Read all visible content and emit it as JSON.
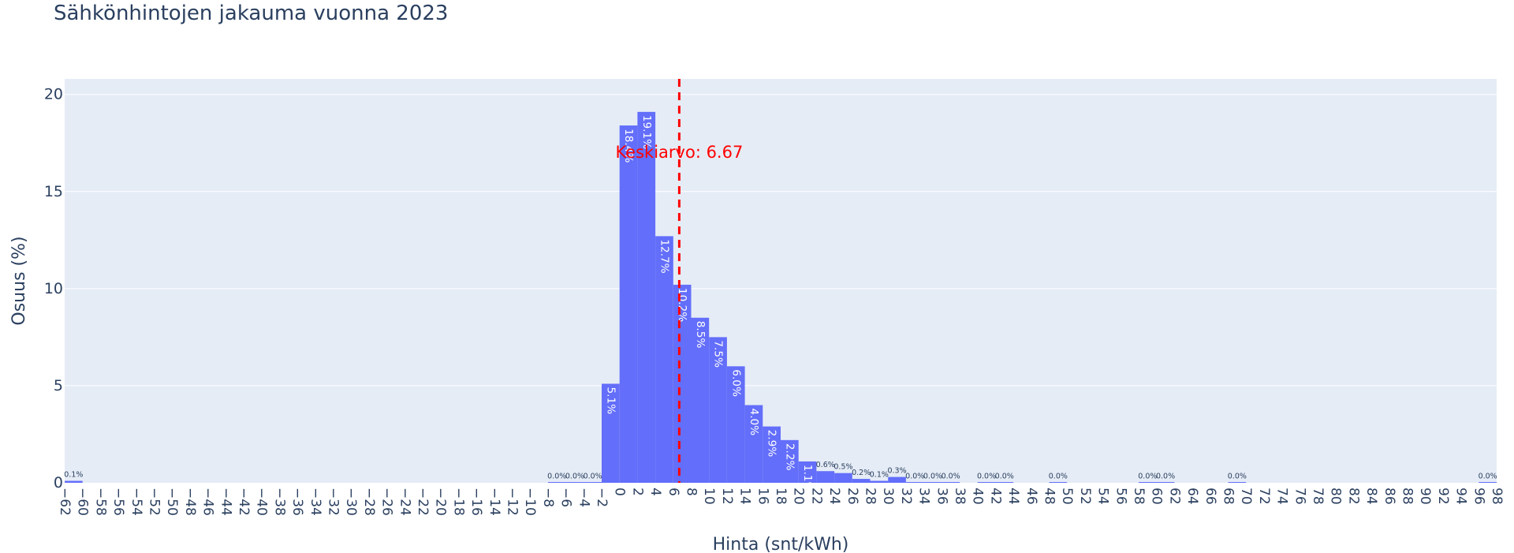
{
  "chart_data": {
    "type": "bar",
    "title": "Sähkönhintojen jakauma vuonna 2023",
    "xlabel": "Hinta (snt/kWh)",
    "ylabel": "Osuus (%)",
    "xlim": [
      -62,
      98
    ],
    "ylim": [
      0,
      20.8
    ],
    "bin_width": 2,
    "x_ticks": [
      -62,
      -60,
      -58,
      -56,
      -54,
      -52,
      -50,
      -48,
      -46,
      -44,
      -42,
      -40,
      -38,
      -36,
      -34,
      -32,
      -30,
      -28,
      -26,
      -24,
      -22,
      -20,
      -18,
      -16,
      -14,
      -12,
      -10,
      -8,
      -6,
      -4,
      -2,
      0,
      2,
      4,
      6,
      8,
      10,
      12,
      14,
      16,
      18,
      20,
      22,
      24,
      26,
      28,
      30,
      32,
      34,
      36,
      38,
      40,
      42,
      44,
      46,
      48,
      50,
      52,
      54,
      56,
      58,
      60,
      62,
      64,
      66,
      68,
      70,
      72,
      74,
      76,
      78,
      80,
      82,
      84,
      86,
      88,
      90,
      92,
      94,
      96,
      98
    ],
    "y_ticks": [
      0,
      5,
      10,
      15,
      20
    ],
    "grid": true,
    "bars": [
      {
        "x0": -62,
        "value": 0.1,
        "label": "0.1%"
      },
      {
        "x0": -8,
        "value": 0.02,
        "label": "0.0%"
      },
      {
        "x0": -6,
        "value": 0.02,
        "label": "0.0%"
      },
      {
        "x0": -4,
        "value": 0.02,
        "label": "0.0%"
      },
      {
        "x0": -2,
        "value": 5.1,
        "label": "5.1%"
      },
      {
        "x0": 0,
        "value": 18.4,
        "label": "18.4%"
      },
      {
        "x0": 2,
        "value": 19.1,
        "label": "19.1%"
      },
      {
        "x0": 4,
        "value": 12.7,
        "label": "12.7%"
      },
      {
        "x0": 6,
        "value": 10.2,
        "label": "10.2%"
      },
      {
        "x0": 8,
        "value": 8.5,
        "label": "8.5%"
      },
      {
        "x0": 10,
        "value": 7.5,
        "label": "7.5%"
      },
      {
        "x0": 12,
        "value": 6.0,
        "label": "6.0%"
      },
      {
        "x0": 14,
        "value": 4.0,
        "label": "4.0%"
      },
      {
        "x0": 16,
        "value": 2.9,
        "label": "2.9%"
      },
      {
        "x0": 18,
        "value": 2.2,
        "label": "2.2%"
      },
      {
        "x0": 20,
        "value": 1.1,
        "label": "1.1%"
      },
      {
        "x0": 22,
        "value": 0.6,
        "label": "0.6%"
      },
      {
        "x0": 24,
        "value": 0.5,
        "label": "0.5%"
      },
      {
        "x0": 26,
        "value": 0.2,
        "label": "0.2%"
      },
      {
        "x0": 28,
        "value": 0.1,
        "label": "0.1%"
      },
      {
        "x0": 30,
        "value": 0.3,
        "label": "0.3%"
      },
      {
        "x0": 32,
        "value": 0.02,
        "label": "0.0%"
      },
      {
        "x0": 34,
        "value": 0.02,
        "label": "0.0%"
      },
      {
        "x0": 36,
        "value": 0.02,
        "label": "0.0%"
      },
      {
        "x0": 40,
        "value": 0.02,
        "label": "0.0%"
      },
      {
        "x0": 42,
        "value": 0.02,
        "label": "0.0%"
      },
      {
        "x0": 48,
        "value": 0.02,
        "label": "0.0%"
      },
      {
        "x0": 58,
        "value": 0.02,
        "label": "0.0%"
      },
      {
        "x0": 60,
        "value": 0.02,
        "label": "0.0%"
      },
      {
        "x0": 68,
        "value": 0.02,
        "label": "0.0%"
      },
      {
        "x0": 96,
        "value": 0.02,
        "label": "0.0%"
      }
    ],
    "mean_line": {
      "x": 6.67,
      "label": "Keskiarvo: 6.67",
      "color": "#ff0000"
    },
    "colors": {
      "bar": "#636efa",
      "plot_bg": "#e5ecf6",
      "grid": "#ffffff",
      "text": "#2a3f5f"
    }
  }
}
